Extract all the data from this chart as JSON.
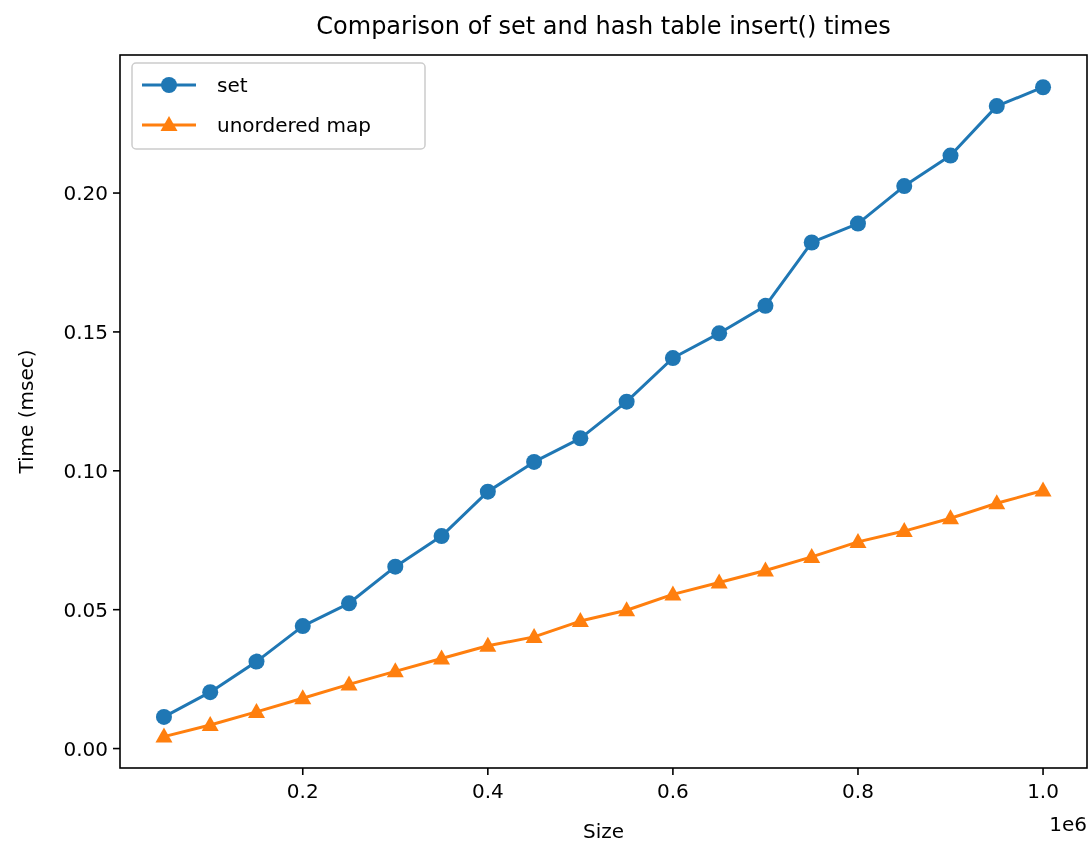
{
  "chart_data": {
    "type": "line",
    "title": "Comparison of set and hash table insert() times",
    "xlabel": "Size",
    "ylabel": "Time (msec)",
    "annotations": [
      "1e6"
    ],
    "x": [
      0.05,
      0.1,
      0.15,
      0.2,
      0.25,
      0.3,
      0.35,
      0.4,
      0.45,
      0.5,
      0.55,
      0.6,
      0.65,
      0.7,
      0.75,
      0.8,
      0.85,
      0.9,
      0.95,
      1.0
    ],
    "series": [
      {
        "name": "set",
        "color": "#1f77b4",
        "marker": "circle",
        "values": [
          0.0114,
          0.0203,
          0.0313,
          0.0441,
          0.0523,
          0.0655,
          0.0765,
          0.0925,
          0.1032,
          0.1117,
          0.1249,
          0.1406,
          0.1495,
          0.1594,
          0.1822,
          0.189,
          0.2025,
          0.2135,
          0.2313,
          0.2381
        ]
      },
      {
        "name": "unordered map",
        "color": "#ff7f0e",
        "marker": "triangle",
        "values": [
          0.0043,
          0.0085,
          0.0132,
          0.0181,
          0.0231,
          0.0278,
          0.0324,
          0.037,
          0.0402,
          0.0459,
          0.0498,
          0.0555,
          0.0598,
          0.0641,
          0.069,
          0.0744,
          0.0783,
          0.0829,
          0.0883,
          0.0929
        ]
      }
    ],
    "xlim": [
      0.0025,
      1.0475
    ],
    "xticks": [
      {
        "value": 0.2,
        "label": "0.2"
      },
      {
        "value": 0.4,
        "label": "0.4"
      },
      {
        "value": 0.6,
        "label": "0.6"
      },
      {
        "value": 0.8,
        "label": "0.8"
      },
      {
        "value": 1.0,
        "label": "1.0"
      }
    ],
    "ylim": [
      -0.007,
      0.2497
    ],
    "yticks": [
      {
        "value": 0,
        "label": "0.00"
      },
      {
        "value": 0.05,
        "label": "0.05"
      },
      {
        "value": 0.1,
        "label": "0.10"
      },
      {
        "value": 0.15,
        "label": "0.15"
      },
      {
        "value": 0.2,
        "label": "0.20"
      }
    ],
    "grid": false,
    "legend": "top left",
    "line_style": "solid"
  }
}
